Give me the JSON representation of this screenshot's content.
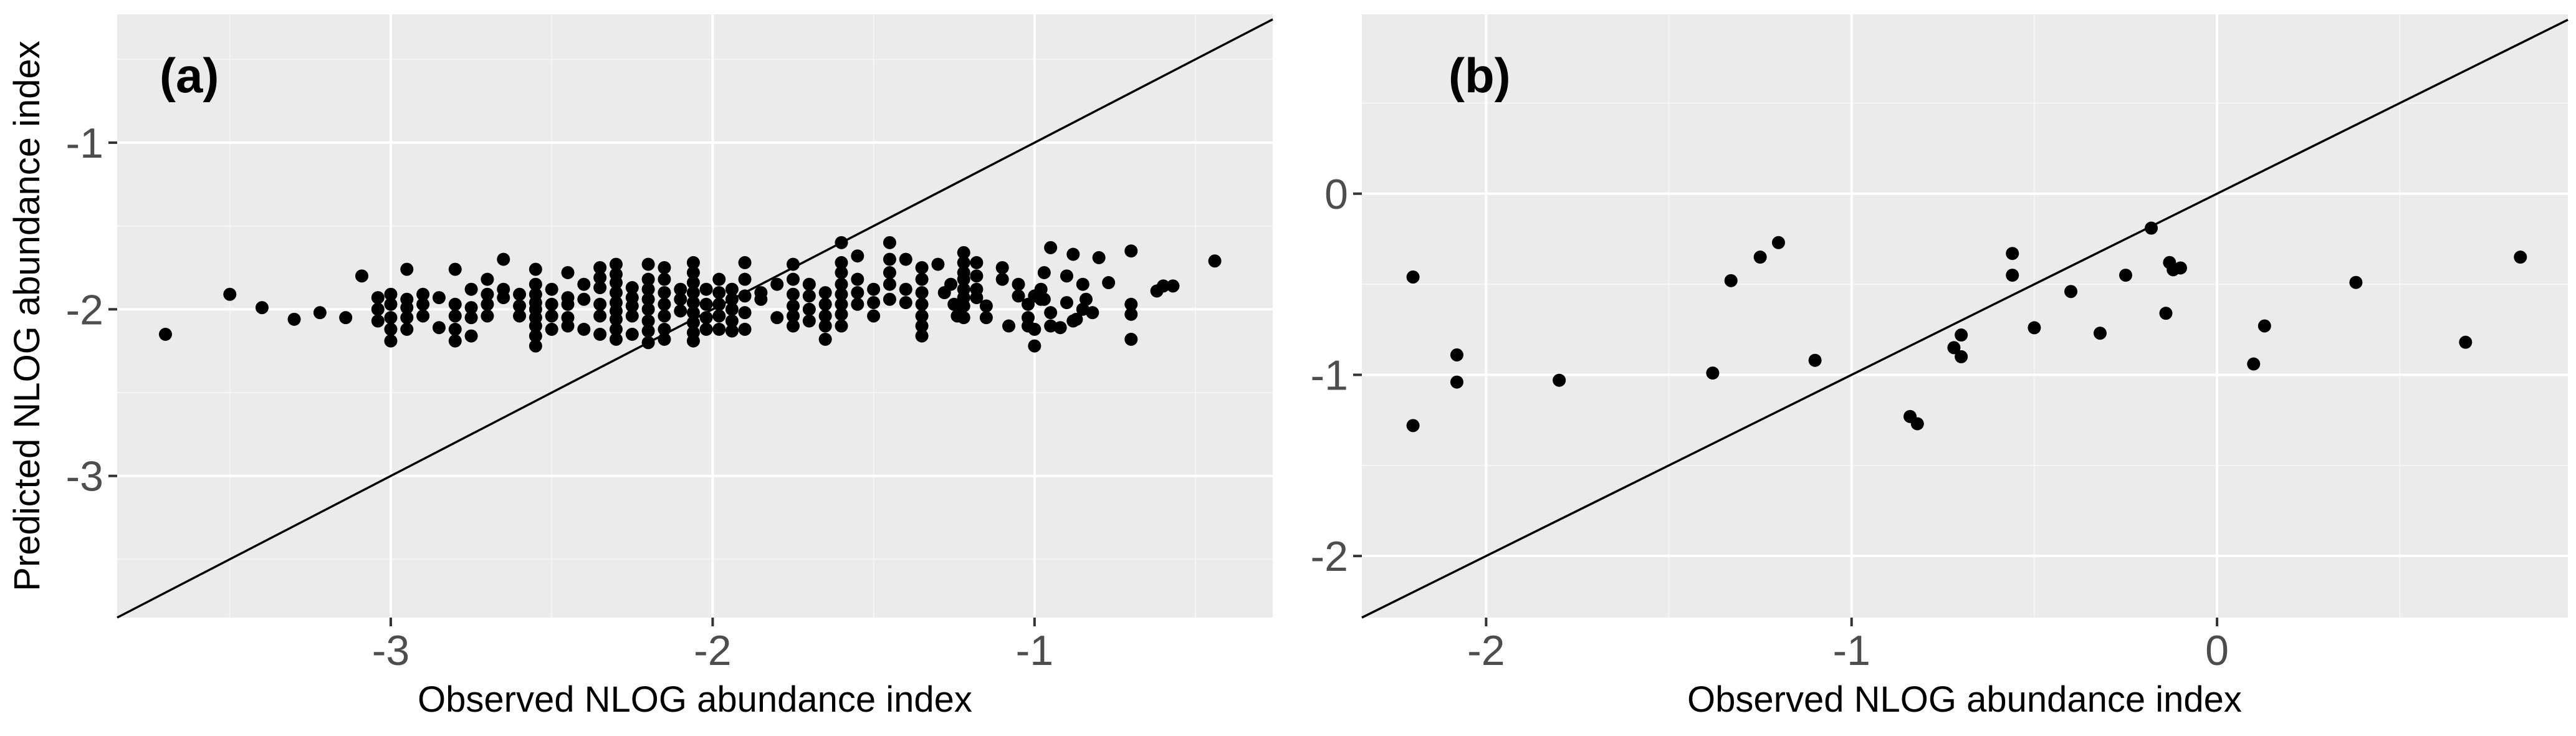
{
  "colors": {
    "panel_bg": "#ebebeb",
    "grid_major": "#ffffff",
    "grid_minor": "#f5f5f5",
    "points": "#000000",
    "ref_line": "#000000",
    "tick_text": "#4d4d4d",
    "tick_mark": "#333333"
  },
  "chart_data": [
    {
      "type": "scatter",
      "panel_label": "(a)",
      "xlabel": "Observed NLOG abundance index",
      "ylabel": "Predicted NLOG abundance index",
      "xlim": [
        -3.85,
        -0.26
      ],
      "ylim": [
        -3.85,
        -0.23
      ],
      "xticks": [
        -3,
        -2,
        -1
      ],
      "xtick_labels": [
        "-3",
        "-2",
        "-1"
      ],
      "yticks": [
        -1,
        -2,
        -3
      ],
      "ytick_labels": [
        "-1",
        "-2",
        "-3"
      ],
      "reference_line": "y = x",
      "grid": true,
      "points": [
        [
          -3.7,
          -2.15
        ],
        [
          -3.5,
          -1.91
        ],
        [
          -3.4,
          -1.99
        ],
        [
          -3.3,
          -2.06
        ],
        [
          -3.22,
          -2.02
        ],
        [
          -3.14,
          -2.05
        ],
        [
          -3.09,
          -1.8
        ],
        [
          -3.04,
          -1.93
        ],
        [
          -3.04,
          -2.0
        ],
        [
          -3.04,
          -2.07
        ],
        [
          -3.0,
          -1.91
        ],
        [
          -3.0,
          -1.97
        ],
        [
          -3.0,
          -2.05
        ],
        [
          -3.0,
          -2.12
        ],
        [
          -3.0,
          -2.19
        ],
        [
          -2.95,
          -1.76
        ],
        [
          -2.95,
          -1.94
        ],
        [
          -2.95,
          -1.99
        ],
        [
          -2.95,
          -2.05
        ],
        [
          -2.95,
          -2.12
        ],
        [
          -2.9,
          -1.91
        ],
        [
          -2.9,
          -1.97
        ],
        [
          -2.9,
          -2.04
        ],
        [
          -2.85,
          -1.93
        ],
        [
          -2.85,
          -2.11
        ],
        [
          -2.8,
          -1.76
        ],
        [
          -2.8,
          -1.97
        ],
        [
          -2.8,
          -2.04
        ],
        [
          -2.8,
          -2.12
        ],
        [
          -2.8,
          -2.19
        ],
        [
          -2.75,
          -1.88
        ],
        [
          -2.75,
          -1.99
        ],
        [
          -2.75,
          -2.05
        ],
        [
          -2.75,
          -2.16
        ],
        [
          -2.7,
          -1.82
        ],
        [
          -2.7,
          -1.91
        ],
        [
          -2.7,
          -1.97
        ],
        [
          -2.7,
          -2.04
        ],
        [
          -2.65,
          -1.7
        ],
        [
          -2.65,
          -1.88
        ],
        [
          -2.65,
          -1.93
        ],
        [
          -2.6,
          -1.91
        ],
        [
          -2.6,
          -1.98
        ],
        [
          -2.6,
          -2.04
        ],
        [
          -2.55,
          -1.76
        ],
        [
          -2.55,
          -1.85
        ],
        [
          -2.55,
          -1.91
        ],
        [
          -2.55,
          -1.96
        ],
        [
          -2.55,
          -2.0
        ],
        [
          -2.55,
          -2.05
        ],
        [
          -2.55,
          -2.1
        ],
        [
          -2.55,
          -2.16
        ],
        [
          -2.55,
          -2.22
        ],
        [
          -2.5,
          -1.88
        ],
        [
          -2.5,
          -1.97
        ],
        [
          -2.5,
          -2.04
        ],
        [
          -2.5,
          -2.12
        ],
        [
          -2.45,
          -1.78
        ],
        [
          -2.45,
          -1.93
        ],
        [
          -2.45,
          -1.97
        ],
        [
          -2.45,
          -2.05
        ],
        [
          -2.45,
          -2.1
        ],
        [
          -2.4,
          -1.85
        ],
        [
          -2.4,
          -1.94
        ],
        [
          -2.4,
          -2.12
        ],
        [
          -2.35,
          -1.75
        ],
        [
          -2.35,
          -1.81
        ],
        [
          -2.35,
          -1.87
        ],
        [
          -2.35,
          -1.97
        ],
        [
          -2.35,
          -2.04
        ],
        [
          -2.35,
          -2.15
        ],
        [
          -2.3,
          -1.73
        ],
        [
          -2.3,
          -1.79
        ],
        [
          -2.3,
          -1.84
        ],
        [
          -2.3,
          -1.9
        ],
        [
          -2.3,
          -1.96
        ],
        [
          -2.3,
          -2.01
        ],
        [
          -2.3,
          -2.06
        ],
        [
          -2.3,
          -2.12
        ],
        [
          -2.3,
          -2.18
        ],
        [
          -2.25,
          -1.87
        ],
        [
          -2.25,
          -1.93
        ],
        [
          -2.25,
          -1.98
        ],
        [
          -2.25,
          -2.04
        ],
        [
          -2.25,
          -2.15
        ],
        [
          -2.2,
          -1.73
        ],
        [
          -2.2,
          -1.82
        ],
        [
          -2.2,
          -1.88
        ],
        [
          -2.2,
          -1.94
        ],
        [
          -2.2,
          -2.0
        ],
        [
          -2.2,
          -2.07
        ],
        [
          -2.2,
          -2.13
        ],
        [
          -2.2,
          -2.2
        ],
        [
          -2.15,
          -1.75
        ],
        [
          -2.15,
          -1.82
        ],
        [
          -2.15,
          -1.9
        ],
        [
          -2.15,
          -1.97
        ],
        [
          -2.15,
          -2.04
        ],
        [
          -2.15,
          -2.12
        ],
        [
          -2.15,
          -2.18
        ],
        [
          -2.1,
          -1.88
        ],
        [
          -2.1,
          -1.94
        ],
        [
          -2.1,
          -2.01
        ],
        [
          -2.06,
          -1.72
        ],
        [
          -2.06,
          -1.78
        ],
        [
          -2.06,
          -1.84
        ],
        [
          -2.06,
          -1.9
        ],
        [
          -2.06,
          -1.96
        ],
        [
          -2.06,
          -2.02
        ],
        [
          -2.06,
          -2.08
        ],
        [
          -2.06,
          -2.14
        ],
        [
          -2.06,
          -2.19
        ],
        [
          -2.02,
          -1.88
        ],
        [
          -2.02,
          -1.97
        ],
        [
          -2.02,
          -2.05
        ],
        [
          -2.02,
          -2.12
        ],
        [
          -1.98,
          -1.82
        ],
        [
          -1.98,
          -1.9
        ],
        [
          -1.98,
          -1.97
        ],
        [
          -1.98,
          -2.04
        ],
        [
          -1.98,
          -2.12
        ],
        [
          -1.94,
          -1.88
        ],
        [
          -1.94,
          -1.94
        ],
        [
          -1.94,
          -2.0
        ],
        [
          -1.94,
          -2.07
        ],
        [
          -1.94,
          -2.13
        ],
        [
          -1.9,
          -1.72
        ],
        [
          -1.9,
          -1.82
        ],
        [
          -1.9,
          -1.92
        ],
        [
          -1.9,
          -2.02
        ],
        [
          -1.9,
          -2.12
        ],
        [
          -1.85,
          -1.9
        ],
        [
          -1.85,
          -1.94
        ],
        [
          -1.8,
          -1.85
        ],
        [
          -1.8,
          -2.05
        ],
        [
          -1.75,
          -1.73
        ],
        [
          -1.75,
          -1.82
        ],
        [
          -1.75,
          -1.91
        ],
        [
          -1.75,
          -1.98
        ],
        [
          -1.75,
          -2.04
        ],
        [
          -1.75,
          -2.1
        ],
        [
          -1.7,
          -1.85
        ],
        [
          -1.7,
          -1.92
        ],
        [
          -1.7,
          -2.0
        ],
        [
          -1.7,
          -2.07
        ],
        [
          -1.65,
          -1.9
        ],
        [
          -1.65,
          -1.97
        ],
        [
          -1.65,
          -2.04
        ],
        [
          -1.65,
          -2.1
        ],
        [
          -1.65,
          -2.18
        ],
        [
          -1.6,
          -1.6
        ],
        [
          -1.6,
          -1.72
        ],
        [
          -1.6,
          -1.78
        ],
        [
          -1.6,
          -1.85
        ],
        [
          -1.6,
          -1.91
        ],
        [
          -1.6,
          -1.97
        ],
        [
          -1.6,
          -2.03
        ],
        [
          -1.6,
          -2.1
        ],
        [
          -1.55,
          -1.68
        ],
        [
          -1.55,
          -1.82
        ],
        [
          -1.55,
          -1.9
        ],
        [
          -1.55,
          -1.97
        ],
        [
          -1.5,
          -1.88
        ],
        [
          -1.5,
          -1.96
        ],
        [
          -1.5,
          -2.04
        ],
        [
          -1.45,
          -1.7
        ],
        [
          -1.45,
          -1.6
        ],
        [
          -1.45,
          -1.78
        ],
        [
          -1.45,
          -1.85
        ],
        [
          -1.45,
          -1.94
        ],
        [
          -1.4,
          -1.7
        ],
        [
          -1.4,
          -1.88
        ],
        [
          -1.4,
          -1.96
        ],
        [
          -1.35,
          -1.75
        ],
        [
          -1.35,
          -1.82
        ],
        [
          -1.35,
          -1.9
        ],
        [
          -1.35,
          -1.97
        ],
        [
          -1.35,
          -2.04
        ],
        [
          -1.35,
          -2.1
        ],
        [
          -1.35,
          -2.16
        ],
        [
          -1.3,
          -1.73
        ],
        [
          -1.28,
          -1.9
        ],
        [
          -1.26,
          -1.85
        ],
        [
          -1.25,
          -1.97
        ],
        [
          -1.24,
          -2.04
        ],
        [
          -1.22,
          -1.66
        ],
        [
          -1.22,
          -1.72
        ],
        [
          -1.22,
          -1.78
        ],
        [
          -1.22,
          -1.82
        ],
        [
          -1.22,
          -1.88
        ],
        [
          -1.22,
          -1.93
        ],
        [
          -1.22,
          -1.98
        ],
        [
          -1.22,
          -2.05
        ],
        [
          -1.18,
          -1.72
        ],
        [
          -1.18,
          -1.8
        ],
        [
          -1.18,
          -1.88
        ],
        [
          -1.18,
          -1.93
        ],
        [
          -1.15,
          -1.98
        ],
        [
          -1.15,
          -2.05
        ],
        [
          -1.1,
          -1.75
        ],
        [
          -1.1,
          -1.82
        ],
        [
          -1.08,
          -2.1
        ],
        [
          -1.05,
          -1.85
        ],
        [
          -1.05,
          -1.92
        ],
        [
          -1.02,
          -1.97
        ],
        [
          -1.02,
          -2.05
        ],
        [
          -1.02,
          -2.1
        ],
        [
          -0.98,
          -1.88
        ],
        [
          -0.98,
          -1.94
        ],
        [
          -0.95,
          -2.02
        ],
        [
          -0.95,
          -2.1
        ],
        [
          -0.9,
          -1.8
        ],
        [
          -0.9,
          -1.96
        ],
        [
          -0.88,
          -2.07
        ],
        [
          -0.85,
          -2.0
        ],
        [
          -0.82,
          -2.02
        ],
        [
          -1.0,
          -1.92
        ],
        [
          -1.0,
          -2.22
        ],
        [
          -1.0,
          -2.12
        ],
        [
          -0.97,
          -1.78
        ],
        [
          -0.97,
          -1.94
        ],
        [
          -0.95,
          -1.63
        ],
        [
          -0.92,
          -2.11
        ],
        [
          -0.88,
          -1.67
        ],
        [
          -0.87,
          -2.06
        ],
        [
          -0.85,
          -1.85
        ],
        [
          -0.84,
          -1.94
        ],
        [
          -0.8,
          -1.69
        ],
        [
          -0.77,
          -1.84
        ],
        [
          -0.7,
          -1.65
        ],
        [
          -0.7,
          -1.97
        ],
        [
          -0.7,
          -2.03
        ],
        [
          -0.7,
          -2.18
        ],
        [
          -0.62,
          -1.89
        ],
        [
          -0.6,
          -1.86
        ],
        [
          -0.57,
          -1.86
        ],
        [
          -0.44,
          -1.71
        ]
      ]
    },
    {
      "type": "scatter",
      "panel_label": "(b)",
      "xlabel": "Observed NLOG abundance index",
      "ylabel": "",
      "xlim": [
        -2.34,
        0.96
      ],
      "ylim": [
        -2.34,
        0.99
      ],
      "xticks": [
        -2,
        -1,
        0
      ],
      "xtick_labels": [
        "-2",
        "-1",
        "0"
      ],
      "yticks": [
        0,
        -1,
        -2
      ],
      "ytick_labels": [
        "0",
        "-1",
        "-2"
      ],
      "reference_line": "y = x",
      "grid": true,
      "points": [
        [
          -2.2,
          -0.46
        ],
        [
          -2.2,
          -1.28
        ],
        [
          -2.08,
          -0.89
        ],
        [
          -2.08,
          -1.04
        ],
        [
          -1.8,
          -1.03
        ],
        [
          -1.38,
          -0.99
        ],
        [
          -1.33,
          -0.48
        ],
        [
          -1.25,
          -0.35
        ],
        [
          -1.2,
          -0.27
        ],
        [
          -1.1,
          -0.92
        ],
        [
          -0.84,
          -1.23
        ],
        [
          -0.82,
          -1.27
        ],
        [
          -0.72,
          -0.85
        ],
        [
          -0.7,
          -0.78
        ],
        [
          -0.7,
          -0.9
        ],
        [
          -0.56,
          -0.33
        ],
        [
          -0.56,
          -0.45
        ],
        [
          -0.5,
          -0.74
        ],
        [
          -0.4,
          -0.54
        ],
        [
          -0.32,
          -0.77
        ],
        [
          -0.25,
          -0.45
        ],
        [
          -0.18,
          -0.19
        ],
        [
          -0.14,
          -0.66
        ],
        [
          -0.13,
          -0.38
        ],
        [
          -0.12,
          -0.42
        ],
        [
          -0.1,
          -0.41
        ],
        [
          0.1,
          -0.94
        ],
        [
          0.13,
          -0.73
        ],
        [
          0.38,
          -0.49
        ],
        [
          0.68,
          -0.82
        ],
        [
          0.83,
          -0.35
        ]
      ]
    }
  ]
}
